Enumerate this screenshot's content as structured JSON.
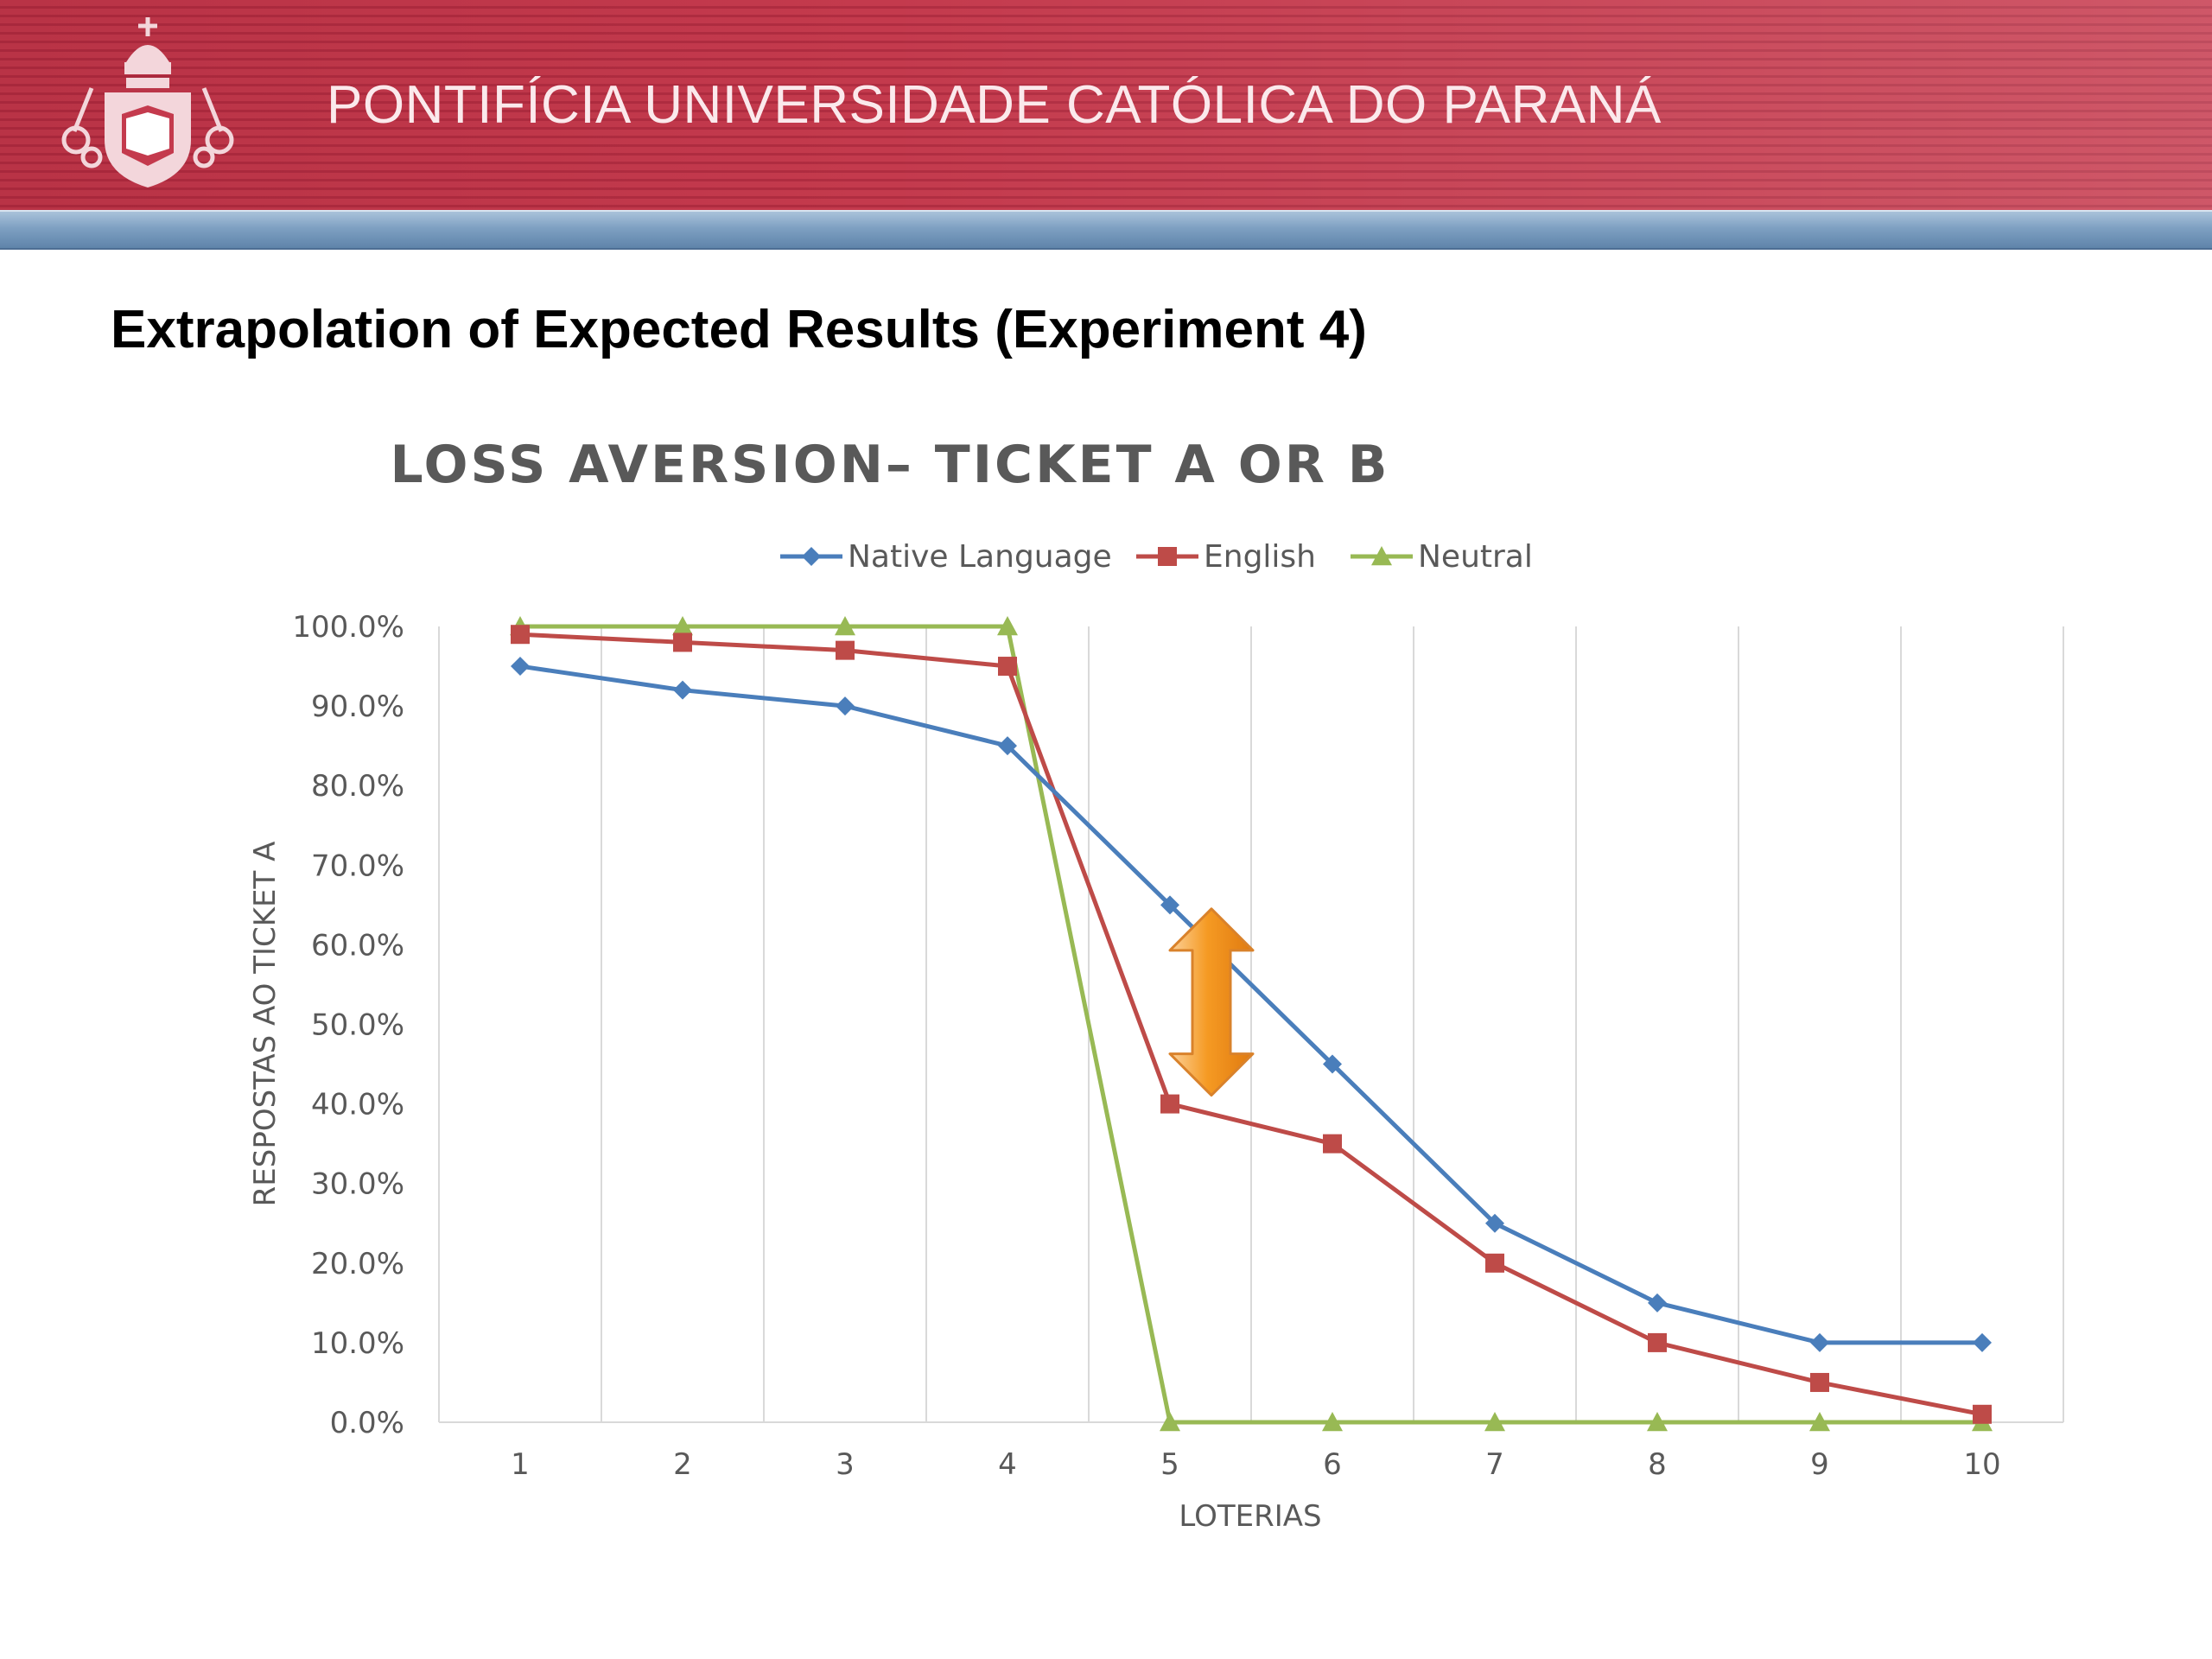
{
  "header": {
    "institution": "PONTIFÍCIA UNIVERSIDADE CATÓLICA DO PARANÁ",
    "logo_icon": "pucpr-crest-icon",
    "colors": {
      "banner": "#c43a4d",
      "strip": "#7ea0c2"
    }
  },
  "slide": {
    "title": "Extrapolation of Expected Results (Experiment 4)"
  },
  "chart_data": {
    "type": "line",
    "title": "LOSS AVERSION– TICKET A OR B",
    "xlabel": "LOTERIAS",
    "ylabel": "RESPOSTAS AO TICKET A",
    "categories": [
      "1",
      "2",
      "3",
      "4",
      "5",
      "6",
      "7",
      "8",
      "9",
      "10"
    ],
    "ylim": [
      0,
      100
    ],
    "yticks": [
      "0.0%",
      "10.0%",
      "20.0%",
      "30.0%",
      "40.0%",
      "50.0%",
      "60.0%",
      "70.0%",
      "80.0%",
      "90.0%",
      "100.0%"
    ],
    "grid": "vertical",
    "legend_position": "top",
    "series": [
      {
        "name": "Native Language",
        "color": "#4a7ebb",
        "marker": "diamond",
        "values": [
          95,
          92,
          90,
          85,
          65,
          45,
          25,
          15,
          10,
          10
        ]
      },
      {
        "name": "English",
        "color": "#be4b48",
        "marker": "square",
        "values": [
          99,
          98,
          97,
          95,
          40,
          35,
          20,
          10,
          5,
          1
        ]
      },
      {
        "name": "Neutral",
        "color": "#98b954",
        "marker": "triangle",
        "values": [
          100,
          100,
          100,
          100,
          0,
          0,
          0,
          0,
          0,
          0
        ]
      }
    ],
    "annotation": {
      "type": "double-arrow",
      "x_category": "5",
      "y_from": 40,
      "y_to": 58,
      "color": "#f59a23"
    }
  }
}
